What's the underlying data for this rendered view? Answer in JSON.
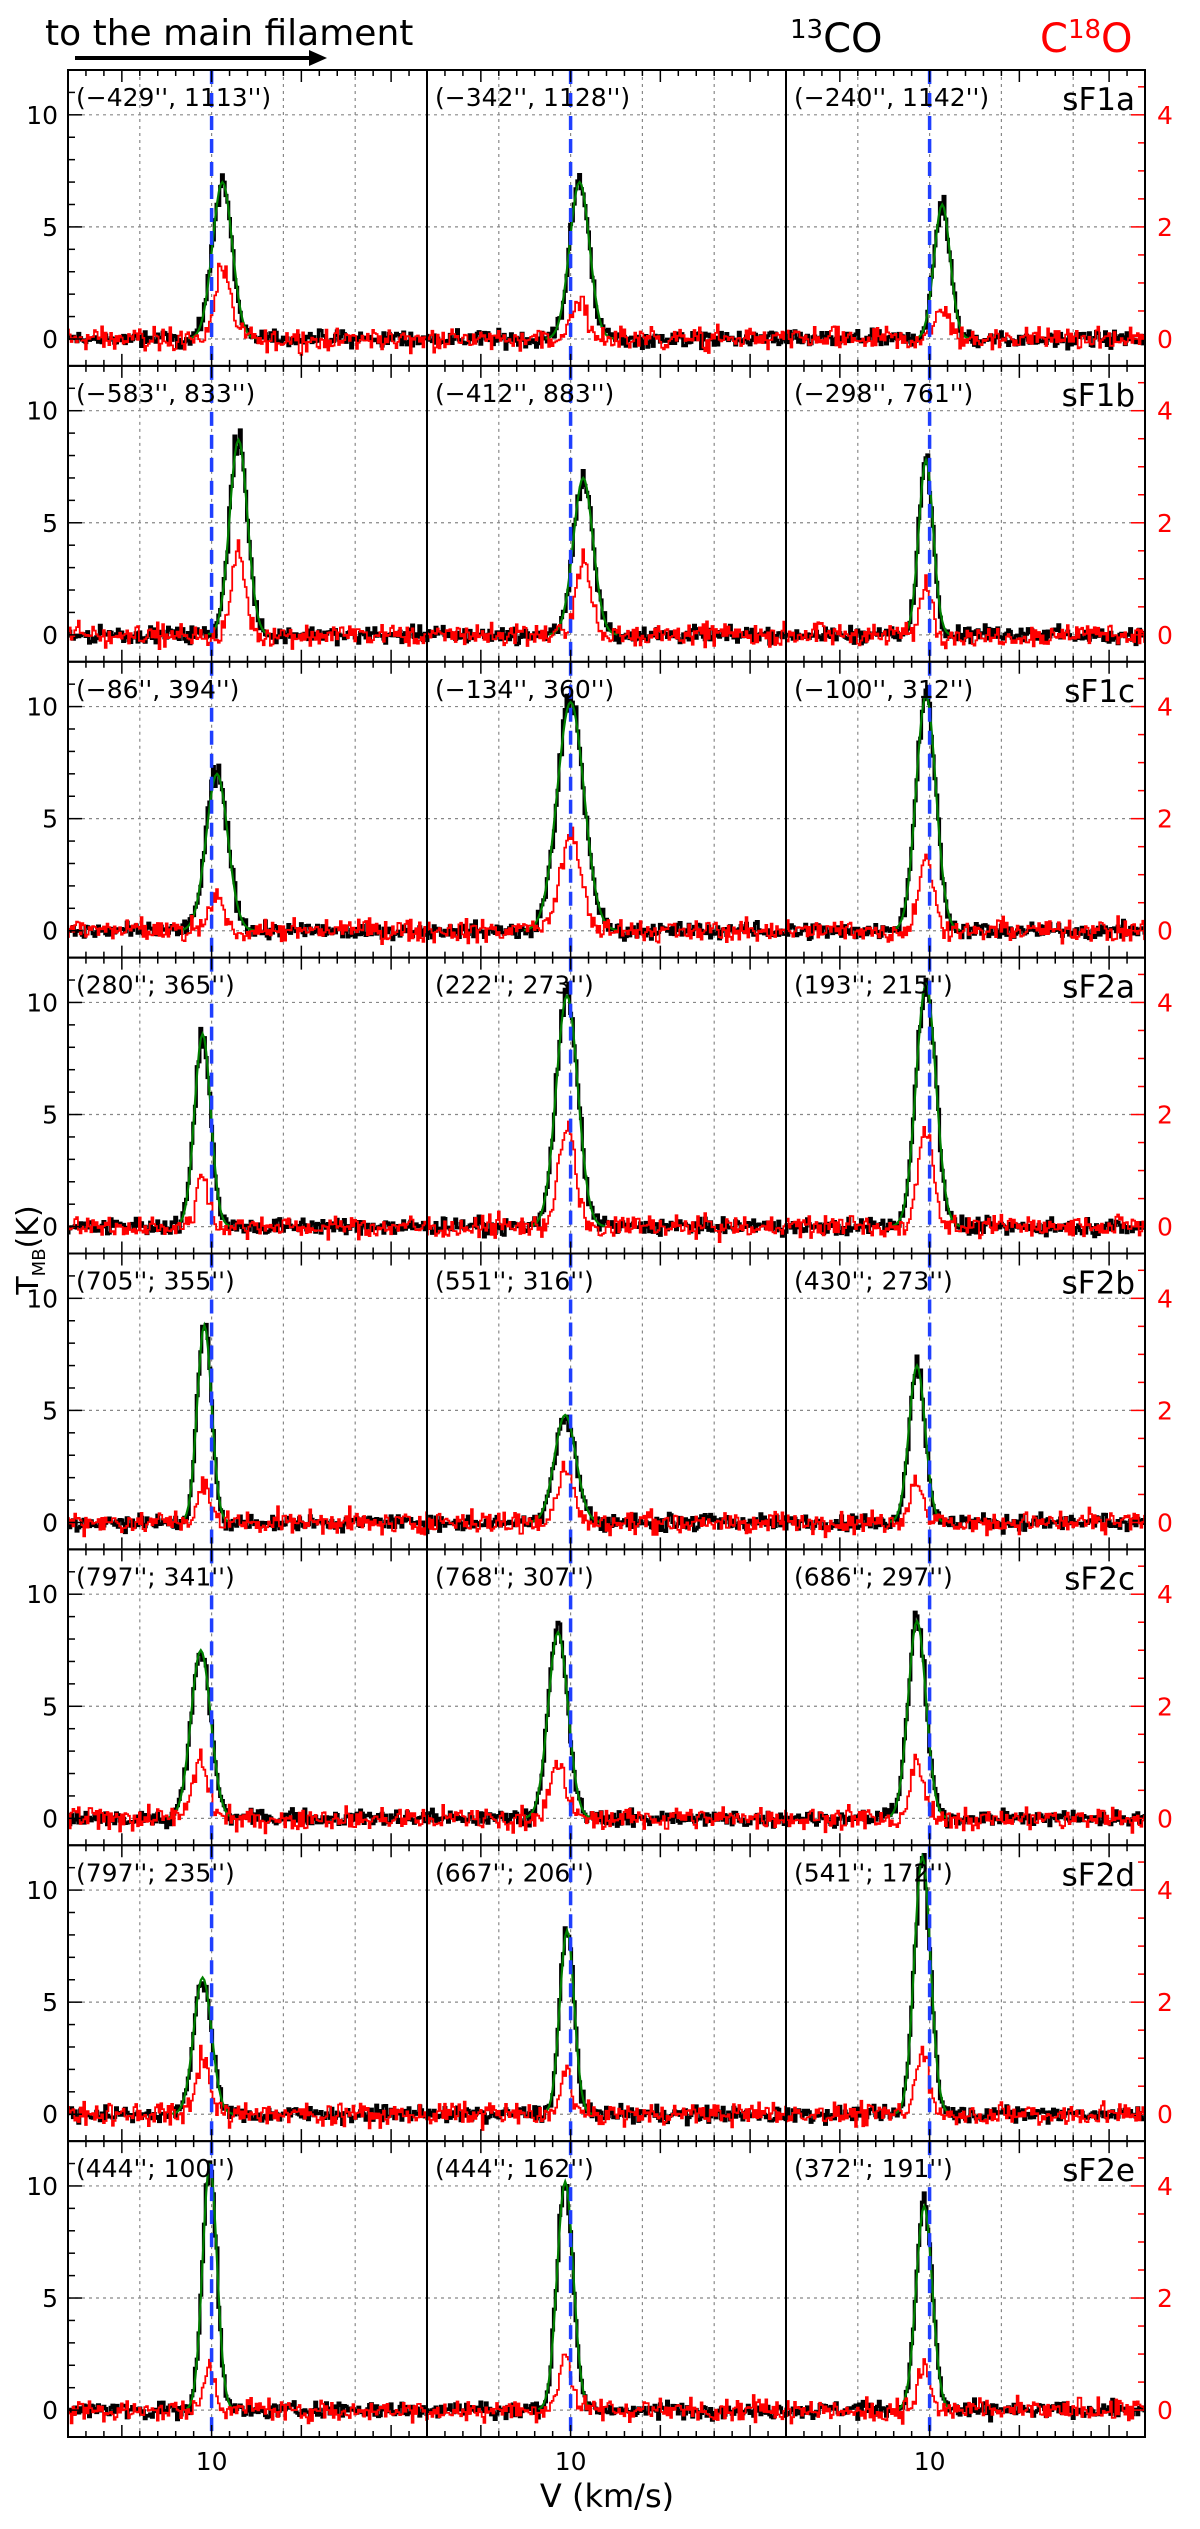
{
  "header": {
    "arrow_label": "to the main filament",
    "species_black_main": "CO",
    "species_black_sup": "13",
    "species_red_prefix": "C",
    "species_red_sup": "18",
    "species_red_suffix": "O"
  },
  "axes": {
    "xlabel": "V (km/s)",
    "ylabel_main": "T",
    "ylabel_sub": "MB",
    "ylabel_unit": "(K)",
    "left_ticks": [
      "0",
      "5",
      "10"
    ],
    "right_ticks": [
      "0",
      "2",
      "4"
    ],
    "bottom_tick": "10"
  },
  "chart_data": {
    "type": "line",
    "layout": "8 rows x 3 columns of spectra panels",
    "xlabel": "V (km/s)",
    "ylabel": "T_MB (K)",
    "ylabel_right": "",
    "xlim": [
      2.0,
      22.0
    ],
    "ylim_13co": [
      -1.2,
      12.0
    ],
    "ylim_c18o": [
      -0.48,
      4.8
    ],
    "x_ticks": [
      10
    ],
    "y_ticks_13co": [
      0,
      5,
      10
    ],
    "y_ticks_c18o": [
      0,
      2,
      4
    ],
    "vertical_reference_line": 10,
    "grid": true,
    "series_names": [
      "13CO",
      "C18O"
    ],
    "series_colors": {
      "13co": "#000000",
      "fit": "#008000",
      "c18o": "#ff0000",
      "reference": "#1f3fff"
    },
    "rows": [
      {
        "label": "sF1a",
        "panels": [
          {
            "offset": "(−429'', 1113'')",
            "v_peak": 10.6,
            "t_13co": 7.0,
            "width": 0.55,
            "t_c18o": 1.3
          },
          {
            "offset": "(−342'', 1128'')",
            "v_peak": 10.5,
            "t_13co": 7.0,
            "width": 0.55,
            "t_c18o": 0.7
          },
          {
            "offset": "(−240'', 1142'')",
            "v_peak": 10.7,
            "t_13co": 6.0,
            "width": 0.45,
            "t_c18o": 0.6
          }
        ]
      },
      {
        "label": "sF1b",
        "panels": [
          {
            "offset": "(−583'', 833'')",
            "v_peak": 11.5,
            "t_13co": 8.7,
            "width": 0.5,
            "t_c18o": 1.5
          },
          {
            "offset": "(−412'', 883'')",
            "v_peak": 10.7,
            "t_13co": 7.0,
            "width": 0.55,
            "t_c18o": 1.3
          },
          {
            "offset": "(−298'', 761'')",
            "v_peak": 9.8,
            "t_13co": 7.8,
            "width": 0.4,
            "t_c18o": 1.0
          }
        ]
      },
      {
        "label": "sF1c",
        "panels": [
          {
            "offset": "(−86'', 394'')",
            "v_peak": 10.3,
            "t_13co": 7.0,
            "width": 0.6,
            "t_c18o": 0.6
          },
          {
            "offset": "(−134'', 360'')",
            "v_peak": 10.0,
            "t_13co": 10.2,
            "width": 0.75,
            "t_c18o": 1.7
          },
          {
            "offset": "(−100'', 312'')",
            "v_peak": 9.8,
            "t_13co": 10.5,
            "width": 0.55,
            "t_c18o": 1.3
          }
        ]
      },
      {
        "label": "sF2a",
        "panels": [
          {
            "offset": "(280''; 365'')",
            "v_peak": 9.5,
            "t_13co": 8.6,
            "width": 0.45,
            "t_c18o": 0.9
          },
          {
            "offset": "(222''; 273'')",
            "v_peak": 9.8,
            "t_13co": 10.3,
            "width": 0.6,
            "t_c18o": 1.8
          },
          {
            "offset": "(193''; 215'')",
            "v_peak": 9.8,
            "t_13co": 10.8,
            "width": 0.55,
            "t_c18o": 1.8
          }
        ]
      },
      {
        "label": "sF2b",
        "panels": [
          {
            "offset": "(705''; 355'')",
            "v_peak": 9.6,
            "t_13co": 8.8,
            "width": 0.4,
            "t_c18o": 0.7
          },
          {
            "offset": "(551''; 316'')",
            "v_peak": 9.7,
            "t_13co": 4.8,
            "width": 0.6,
            "t_c18o": 0.9
          },
          {
            "offset": "(430''; 273'')",
            "v_peak": 9.3,
            "t_13co": 7.0,
            "width": 0.45,
            "t_c18o": 0.8
          }
        ]
      },
      {
        "label": "sF2c",
        "panels": [
          {
            "offset": "(797''; 341'')",
            "v_peak": 9.4,
            "t_13co": 7.5,
            "width": 0.55,
            "t_c18o": 1.0
          },
          {
            "offset": "(768''; 307'')",
            "v_peak": 9.3,
            "t_13co": 8.3,
            "width": 0.55,
            "t_c18o": 1.0
          },
          {
            "offset": "(686''; 297'')",
            "v_peak": 9.3,
            "t_13co": 8.8,
            "width": 0.5,
            "t_c18o": 1.0
          }
        ]
      },
      {
        "label": "sF2d",
        "panels": [
          {
            "offset": "(797''; 235'')",
            "v_peak": 9.5,
            "t_13co": 6.1,
            "width": 0.5,
            "t_c18o": 1.0
          },
          {
            "offset": "(667''; 206'')",
            "v_peak": 9.8,
            "t_13co": 8.2,
            "width": 0.4,
            "t_c18o": 0.8
          },
          {
            "offset": "(541''; 172'')",
            "v_peak": 9.6,
            "t_13co": 11.5,
            "width": 0.45,
            "t_c18o": 1.2
          }
        ]
      },
      {
        "label": "sF2e",
        "panels": [
          {
            "offset": "(444''; 100'')",
            "v_peak": 9.9,
            "t_13co": 11.0,
            "width": 0.4,
            "t_c18o": 0.8
          },
          {
            "offset": "(444''; 162'')",
            "v_peak": 9.7,
            "t_13co": 10.2,
            "width": 0.45,
            "t_c18o": 1.0
          },
          {
            "offset": "(372''; 191'')",
            "v_peak": 9.7,
            "t_13co": 9.1,
            "width": 0.45,
            "t_c18o": 0.8
          }
        ]
      }
    ]
  }
}
